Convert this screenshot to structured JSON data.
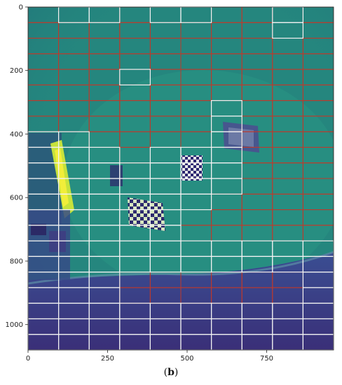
{
  "figure": {
    "caption_open": "(",
    "caption_letter": "b",
    "caption_close": ")"
  },
  "axes": {
    "x_ticks": [
      "0",
      "250",
      "500",
      "750"
    ],
    "y_ticks": [
      "0",
      "200",
      "400",
      "600",
      "800",
      "1000"
    ],
    "xlim": [
      0,
      960
    ],
    "ylim": [
      1080,
      0
    ]
  },
  "grid": {
    "columns": 10,
    "rows": 22,
    "colors": {
      "red": "#c0392b",
      "white": "#f2f2f2",
      "teal": "#26907f",
      "dark": "#3b3f8c"
    }
  }
}
